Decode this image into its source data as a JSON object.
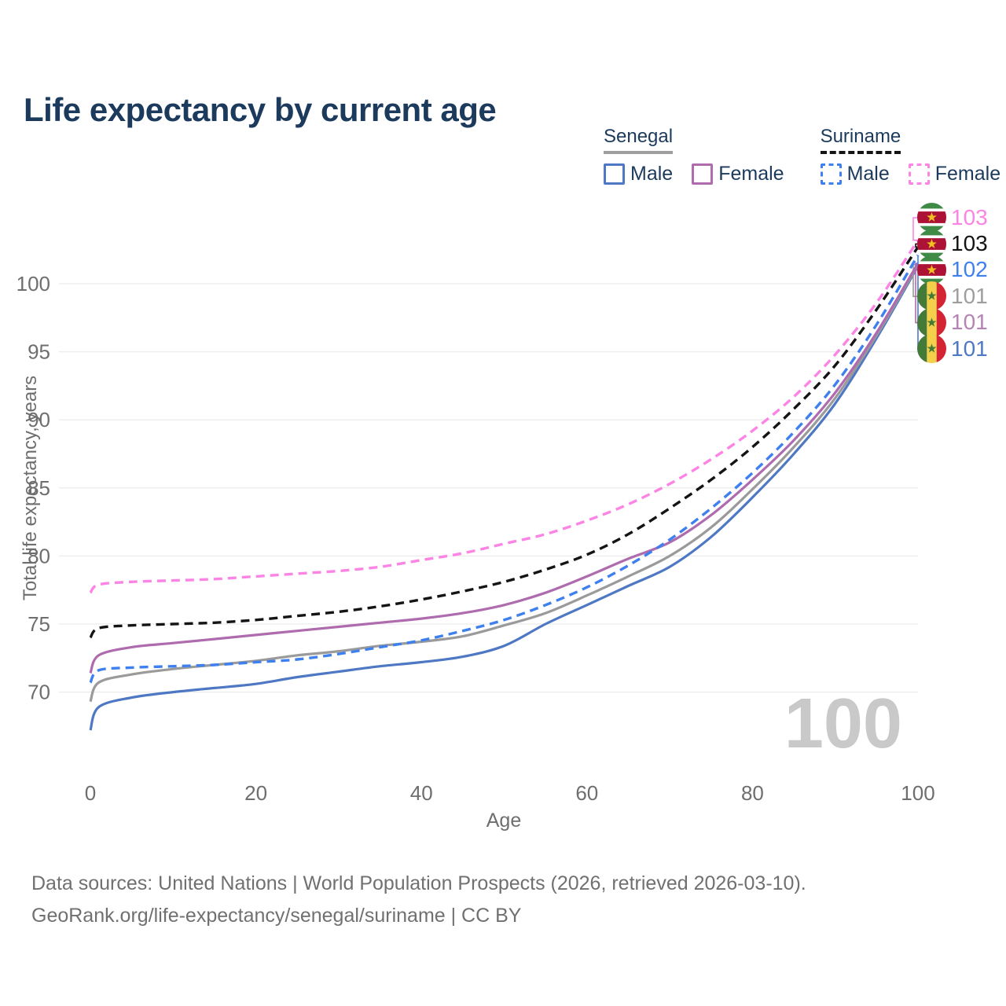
{
  "title": "Life expectancy by current age",
  "legend": {
    "senegal": {
      "label": "Senegal",
      "male": "Male",
      "female": "Female"
    },
    "suriname": {
      "label": "Suriname",
      "male": "Male",
      "female": "Female"
    }
  },
  "footer": {
    "line1": "Data sources: United Nations | World Population Prospects (2026, retrieved 2026-03-10).",
    "line2": "GeoRank.org/life-expectancy/senegal/suriname | CC BY"
  },
  "colors": {
    "title_text": "#1b3a5c",
    "axis_text": "#6e6e6e",
    "gridline": "#ececec",
    "watermark": "#c9c9c9",
    "footer_text": "#707070",
    "senegal_male": "#4e78c4",
    "senegal_total": "#9a9a9a",
    "senegal_female": "#ae6cae",
    "suriname_male": "#3f80ef",
    "suriname_total": "#141414",
    "suriname_female": "#fb84e4"
  },
  "end_labels": {
    "rows": [
      {
        "flag": "suriname-flag",
        "value": "103",
        "color": "#fb84e4"
      },
      {
        "flag": "suriname-flag",
        "value": "103",
        "color": "#141414"
      },
      {
        "flag": "suriname-flag",
        "value": "102",
        "color": "#3f80ef"
      },
      {
        "flag": "senegal-flag",
        "value": "101",
        "color": "#9e9e9e"
      },
      {
        "flag": "senegal-flag",
        "value": "101",
        "color": "#b583b5"
      },
      {
        "flag": "senegal-flag",
        "value": "101",
        "color": "#4e78c4"
      }
    ]
  },
  "chart_data": {
    "type": "line",
    "title": "Life expectancy by current age",
    "xlabel": "Age",
    "ylabel": "Total life expectancy, years",
    "xlim": [
      0,
      100
    ],
    "ylim": [
      66,
      104
    ],
    "x_ticks": [
      0,
      20,
      40,
      60,
      80,
      100
    ],
    "y_ticks": [
      70,
      75,
      80,
      85,
      90,
      95,
      100
    ],
    "grid": true,
    "legend_position": "top-right",
    "hovered_age": "100",
    "x": [
      0,
      1,
      5,
      10,
      15,
      20,
      25,
      30,
      35,
      40,
      45,
      50,
      55,
      60,
      65,
      70,
      75,
      80,
      85,
      90,
      95,
      100
    ],
    "series": [
      {
        "id": "senegal-male",
        "name": "Senegal Male",
        "country": "Senegal",
        "sex": "Male",
        "color": "#4e78c4",
        "dash": false,
        "label_row": 5,
        "end_label": "101",
        "values": [
          67.2,
          68.9,
          69.6,
          70.0,
          70.3,
          70.6,
          71.1,
          71.5,
          71.9,
          72.2,
          72.6,
          73.4,
          75.0,
          76.4,
          77.8,
          79.2,
          81.4,
          84.3,
          87.5,
          91.2,
          96.0,
          101.3
        ]
      },
      {
        "id": "senegal-total",
        "name": "Senegal",
        "country": "Senegal",
        "sex": "Both",
        "color": "#9a9a9a",
        "dash": false,
        "label_row": 3,
        "end_label": "101",
        "values": [
          69.3,
          70.7,
          71.3,
          71.7,
          72.0,
          72.3,
          72.7,
          73.0,
          73.4,
          73.7,
          74.1,
          74.9,
          75.8,
          77.1,
          78.5,
          80.0,
          82.1,
          84.9,
          88.0,
          91.6,
          96.2,
          101.4
        ]
      },
      {
        "id": "senegal-female",
        "name": "Senegal Female",
        "country": "Senegal",
        "sex": "Female",
        "color": "#ae6cae",
        "dash": false,
        "label_row": 4,
        "end_label": "101",
        "values": [
          71.4,
          72.7,
          73.3,
          73.6,
          73.9,
          74.2,
          74.5,
          74.8,
          75.1,
          75.4,
          75.8,
          76.4,
          77.3,
          78.5,
          79.8,
          81.0,
          83.0,
          85.6,
          88.5,
          92.0,
          96.4,
          101.5
        ]
      },
      {
        "id": "suriname-male",
        "name": "Suriname Male",
        "country": "Suriname",
        "sex": "Male",
        "color": "#3f80ef",
        "dash": true,
        "label_row": 2,
        "end_label": "102",
        "values": [
          70.7,
          71.6,
          71.8,
          71.9,
          72.0,
          72.2,
          72.4,
          72.8,
          73.3,
          73.8,
          74.5,
          75.3,
          76.4,
          77.7,
          79.3,
          81.2,
          83.5,
          86.1,
          89.1,
          92.6,
          97.0,
          102.1
        ]
      },
      {
        "id": "suriname-total",
        "name": "Suriname",
        "country": "Suriname",
        "sex": "Both",
        "color": "#141414",
        "dash": true,
        "label_row": 1,
        "end_label": "103",
        "values": [
          74.0,
          74.7,
          74.9,
          75.0,
          75.1,
          75.3,
          75.6,
          75.9,
          76.3,
          76.8,
          77.4,
          78.1,
          79.0,
          80.1,
          81.6,
          83.5,
          85.6,
          88.0,
          90.8,
          94.0,
          98.1,
          102.7
        ]
      },
      {
        "id": "suriname-female",
        "name": "Suriname Female",
        "country": "Suriname",
        "sex": "Female",
        "color": "#fb84e4",
        "dash": true,
        "label_row": 0,
        "end_label": "103",
        "values": [
          77.3,
          77.9,
          78.1,
          78.2,
          78.3,
          78.5,
          78.7,
          78.9,
          79.2,
          79.7,
          80.2,
          80.9,
          81.6,
          82.6,
          83.8,
          85.3,
          87.1,
          89.2,
          91.7,
          94.8,
          98.6,
          103.2
        ]
      }
    ]
  }
}
